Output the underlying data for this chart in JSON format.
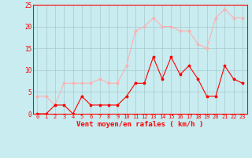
{
  "x": [
    0,
    1,
    2,
    3,
    4,
    5,
    6,
    7,
    8,
    9,
    10,
    11,
    12,
    13,
    14,
    15,
    16,
    17,
    18,
    19,
    20,
    21,
    22,
    23
  ],
  "wind_avg": [
    0,
    0,
    2,
    2,
    0,
    4,
    2,
    2,
    2,
    2,
    4,
    7,
    7,
    13,
    8,
    13,
    9,
    11,
    8,
    4,
    4,
    11,
    8,
    7
  ],
  "wind_gust": [
    4,
    4,
    2,
    7,
    7,
    7,
    7,
    8,
    7,
    7,
    11,
    19,
    20,
    22,
    20,
    20,
    19,
    19,
    16,
    15,
    22,
    24,
    22,
    22
  ],
  "avg_color": "#FF0000",
  "gust_color": "#FFB0B0",
  "background_color": "#C8ECF0",
  "grid_color": "#A8C8CC",
  "text_color": "#FF0000",
  "xlabel": "Vent moyen/en rafales ( km/h )",
  "ylim": [
    0,
    25
  ],
  "yticks": [
    0,
    5,
    10,
    15,
    20,
    25
  ],
  "xticks": [
    0,
    1,
    2,
    3,
    4,
    5,
    6,
    7,
    8,
    9,
    10,
    11,
    12,
    13,
    14,
    15,
    16,
    17,
    18,
    19,
    20,
    21,
    22,
    23
  ]
}
